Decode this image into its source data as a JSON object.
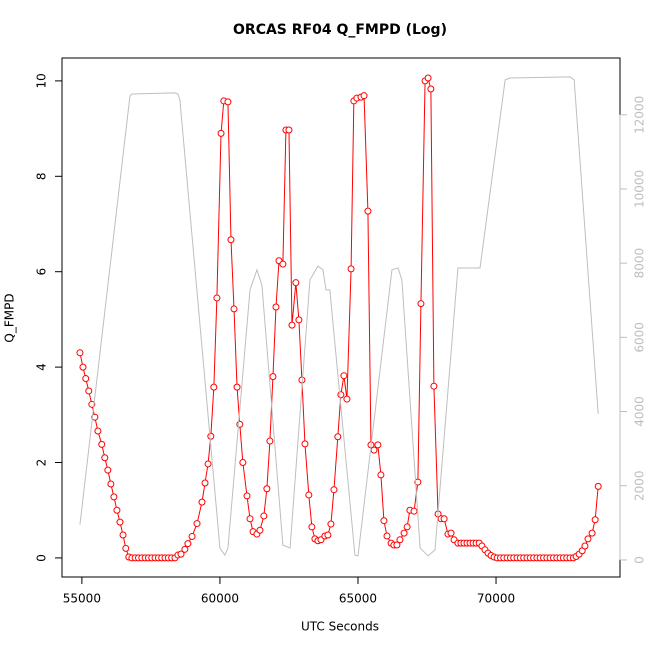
{
  "chart_data": {
    "type": "line",
    "title": "ORCAS RF04 Q_FMPD (Log)",
    "x_label": "UTC Seconds",
    "y_label": "Q_FMPD",
    "xlim": [
      54280,
      74490
    ],
    "ylim": [
      -0.4,
      10.48
    ],
    "y2lim": [
      -460,
      13530
    ],
    "xticks": [
      55000,
      60000,
      65000,
      70000
    ],
    "yticks": [
      0,
      2,
      4,
      6,
      8,
      10
    ],
    "y2ticks": [
      0,
      2000,
      4000,
      6000,
      8000,
      10000,
      12000
    ],
    "y2_color": "#bebebe",
    "series": [
      {
        "color": "#ff0000",
        "marker": "circle",
        "x": [
          54930,
          55040,
          55140,
          55250,
          55360,
          55470,
          55580,
          55720,
          55830,
          55940,
          56050,
          56160,
          56270,
          56380,
          56490,
          56590,
          56700,
          56810,
          56930,
          57050,
          57170,
          57290,
          57410,
          57530,
          57650,
          57770,
          57890,
          58010,
          58130,
          58250,
          58370,
          58480,
          58590,
          58730,
          58840,
          58990,
          59170,
          59350,
          59460,
          59570,
          59670,
          59780,
          59890,
          60040,
          60140,
          60290,
          60400,
          60510,
          60620,
          60720,
          60830,
          60980,
          61090,
          61200,
          61340,
          61450,
          61590,
          61700,
          61810,
          61920,
          62030,
          62140,
          62280,
          62390,
          62500,
          62610,
          62750,
          62860,
          62970,
          63080,
          63220,
          63330,
          63440,
          63550,
          63660,
          63800,
          63910,
          64020,
          64130,
          64270,
          64380,
          64490,
          64600,
          64750,
          64850,
          64960,
          65110,
          65220,
          65360,
          65470,
          65580,
          65720,
          65830,
          65940,
          66050,
          66200,
          66300,
          66410,
          66520,
          66670,
          66780,
          66880,
          67030,
          67170,
          67280,
          67430,
          67540,
          67640,
          67750,
          67900,
          68010,
          68120,
          68260,
          68370,
          68480,
          68620,
          68730,
          68840,
          68950,
          69060,
          69170,
          69280,
          69390,
          69490,
          69600,
          69710,
          69820,
          69930,
          70040,
          70160,
          70280,
          70400,
          70520,
          70640,
          70760,
          70880,
          71000,
          71120,
          71240,
          71360,
          71480,
          71600,
          71720,
          71840,
          71960,
          72080,
          72200,
          72320,
          72440,
          72560,
          72680,
          72800,
          72900,
          73010,
          73120,
          73220,
          73330,
          73480,
          73590,
          73700
        ],
        "values": [
          4.3,
          4.0,
          3.76,
          3.5,
          3.22,
          2.95,
          2.66,
          2.38,
          2.1,
          1.84,
          1.55,
          1.28,
          1.0,
          0.75,
          0.48,
          0.2,
          0.02,
          0,
          0,
          0,
          0,
          0,
          0,
          0,
          0,
          0,
          0,
          0,
          0,
          0,
          0,
          0.06,
          0.08,
          0.18,
          0.3,
          0.45,
          0.72,
          1.17,
          1.57,
          1.97,
          2.55,
          3.58,
          5.45,
          8.9,
          9.58,
          9.56,
          6.67,
          5.22,
          3.58,
          2.8,
          2.0,
          1.3,
          0.82,
          0.55,
          0.5,
          0.58,
          0.88,
          1.45,
          2.45,
          3.8,
          5.26,
          6.23,
          6.16,
          8.97,
          8.97,
          4.88,
          5.77,
          4.99,
          3.73,
          2.39,
          1.32,
          0.65,
          0.4,
          0.36,
          0.38,
          0.46,
          0.48,
          0.71,
          1.43,
          2.54,
          3.42,
          3.82,
          3.33,
          6.06,
          9.58,
          9.64,
          9.66,
          9.69,
          7.27,
          2.37,
          2.26,
          2.37,
          1.74,
          0.78,
          0.46,
          0.31,
          0.27,
          0.27,
          0.38,
          0.52,
          0.65,
          1.0,
          0.98,
          1.59,
          5.33,
          10.0,
          10.06,
          9.83,
          3.6,
          0.92,
          0.82,
          0.82,
          0.5,
          0.52,
          0.38,
          0.31,
          0.31,
          0.31,
          0.31,
          0.31,
          0.31,
          0.31,
          0.31,
          0.25,
          0.17,
          0.1,
          0.05,
          0.02,
          0,
          0,
          0,
          0,
          0,
          0,
          0,
          0,
          0,
          0,
          0,
          0,
          0,
          0,
          0,
          0,
          0,
          0,
          0,
          0,
          0,
          0,
          0,
          0,
          0.03,
          0.08,
          0.15,
          0.25,
          0.4,
          0.52,
          0.8,
          1.5
        ]
      },
      {
        "color": "#bebebe",
        "axis": "y2",
        "x": [
          54930,
          56740,
          56810,
          58370,
          58480,
          58550,
          60000,
          60180,
          60290,
          61090,
          61340,
          61520,
          62280,
          62540,
          63260,
          63550,
          63730,
          63840,
          63980,
          64890,
          65000,
          66230,
          66450,
          66590,
          67250,
          67540,
          67790,
          68620,
          69420,
          70330,
          70510,
          72680,
          72830,
          73700
        ],
        "values": [
          950,
          12500,
          12560,
          12590,
          12560,
          12400,
          320,
          130,
          320,
          7280,
          7820,
          7410,
          400,
          320,
          7550,
          7920,
          7820,
          7280,
          7280,
          130,
          110,
          7820,
          7870,
          7550,
          320,
          110,
          270,
          7870,
          7870,
          12940,
          12990,
          13020,
          12940,
          3940
        ]
      }
    ]
  }
}
